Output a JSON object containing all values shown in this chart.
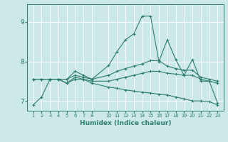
{
  "xlabel": "Humidex (Indice chaleur)",
  "background_color": "#cce8e8",
  "line_color": "#2e7d6e",
  "grid_color": "#ffffff",
  "x_vals": [
    1,
    2,
    3,
    4,
    5,
    6,
    7,
    8,
    10,
    11,
    12,
    13,
    14,
    15,
    16,
    17,
    18,
    19,
    20,
    21,
    22,
    23
  ],
  "series": [
    [
      7.55,
      7.55,
      7.55,
      7.55,
      7.55,
      7.75,
      7.65,
      7.55,
      7.9,
      8.25,
      8.55,
      8.7,
      9.15,
      9.15,
      8.0,
      8.55,
      8.05,
      7.65,
      8.05,
      7.5,
      7.5,
      6.95
    ],
    [
      7.55,
      7.55,
      7.55,
      7.55,
      7.55,
      7.65,
      7.6,
      7.55,
      7.65,
      7.75,
      7.82,
      7.88,
      7.94,
      8.02,
      8.02,
      7.88,
      7.82,
      7.78,
      7.78,
      7.6,
      7.55,
      7.5
    ],
    [
      7.55,
      7.55,
      7.55,
      7.55,
      7.45,
      7.55,
      7.55,
      7.5,
      7.5,
      7.55,
      7.6,
      7.65,
      7.7,
      7.75,
      7.75,
      7.7,
      7.68,
      7.65,
      7.65,
      7.55,
      7.5,
      7.45
    ],
    [
      6.9,
      7.1,
      7.55,
      7.55,
      7.45,
      7.6,
      7.55,
      7.45,
      7.35,
      7.32,
      7.28,
      7.25,
      7.22,
      7.2,
      7.17,
      7.15,
      7.1,
      7.05,
      7.0,
      7.0,
      6.98,
      6.9
    ]
  ],
  "ylim": [
    6.75,
    9.45
  ],
  "yticks": [
    7,
    8,
    9
  ],
  "figsize": [
    3.2,
    2.0
  ],
  "dpi": 100
}
